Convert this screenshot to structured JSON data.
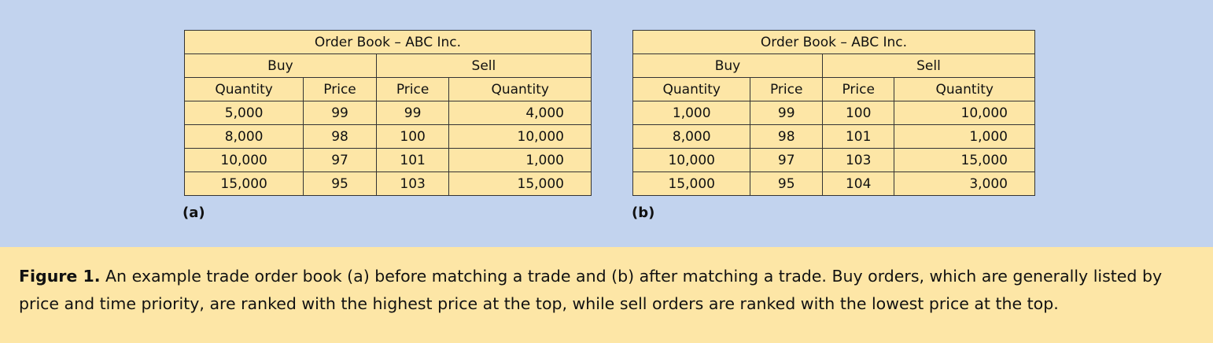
{
  "books": [
    {
      "title": "Order Book – ABC Inc.",
      "buy_label": "Buy",
      "sell_label": "Sell",
      "columns": [
        "Quantity",
        "Price",
        "Price",
        "Quantity"
      ],
      "rows": [
        [
          "5,000",
          "99",
          "99",
          "4,000"
        ],
        [
          "8,000",
          "98",
          "100",
          "10,000"
        ],
        [
          "10,000",
          "97",
          "101",
          "1,000"
        ],
        [
          "15,000",
          "95",
          "103",
          "15,000"
        ]
      ],
      "panel_label": "(a)"
    },
    {
      "title": "Order Book – ABC Inc.",
      "buy_label": "Buy",
      "sell_label": "Sell",
      "columns": [
        "Quantity",
        "Price",
        "Price",
        "Quantity"
      ],
      "rows": [
        [
          "1,000",
          "99",
          "100",
          "10,000"
        ],
        [
          "8,000",
          "98",
          "101",
          "1,000"
        ],
        [
          "10,000",
          "97",
          "103",
          "15,000"
        ],
        [
          "15,000",
          "95",
          "104",
          "3,000"
        ]
      ],
      "panel_label": "(b)"
    }
  ],
  "caption": {
    "label": "Figure 1.",
    "text": " An example trade order book (a) before matching a trade and (b) after matching a trade. Buy orders, which are generally listed by price and time priority, are ranked with the highest price at the top, while sell orders are ranked with the lowest price at the top."
  }
}
